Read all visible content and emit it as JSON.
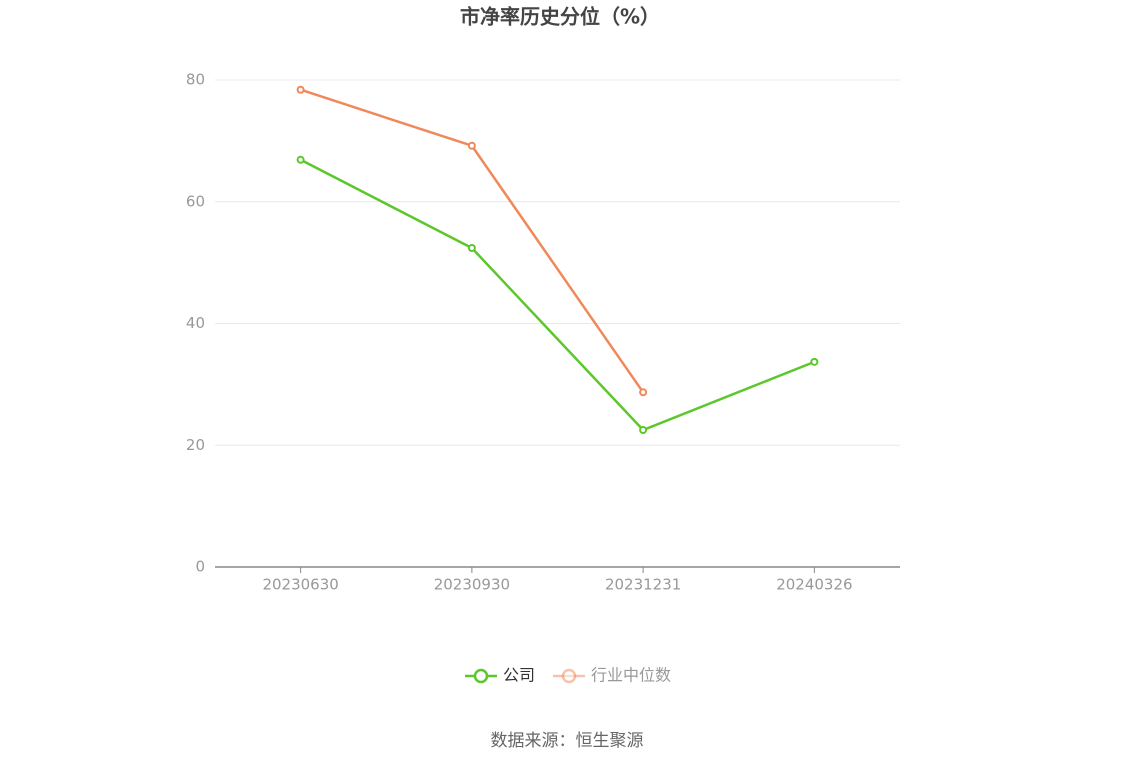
{
  "chart_data": {
    "type": "line",
    "title": "市净率历史分位（%）",
    "categories": [
      "20230630",
      "20230930",
      "20231231",
      "20240326"
    ],
    "series": [
      {
        "name": "公司",
        "color": "#5cc72b",
        "values": [
          66.9,
          52.4,
          22.5,
          33.7
        ]
      },
      {
        "name": "行业中位数",
        "color": "#f0895a",
        "values": [
          78.4,
          69.2,
          28.7,
          null
        ]
      }
    ],
    "ylim": [
      0,
      80
    ],
    "yticks": [
      0,
      20,
      40,
      60,
      80
    ],
    "grid": true,
    "source": "数据来源：恒生聚源"
  }
}
